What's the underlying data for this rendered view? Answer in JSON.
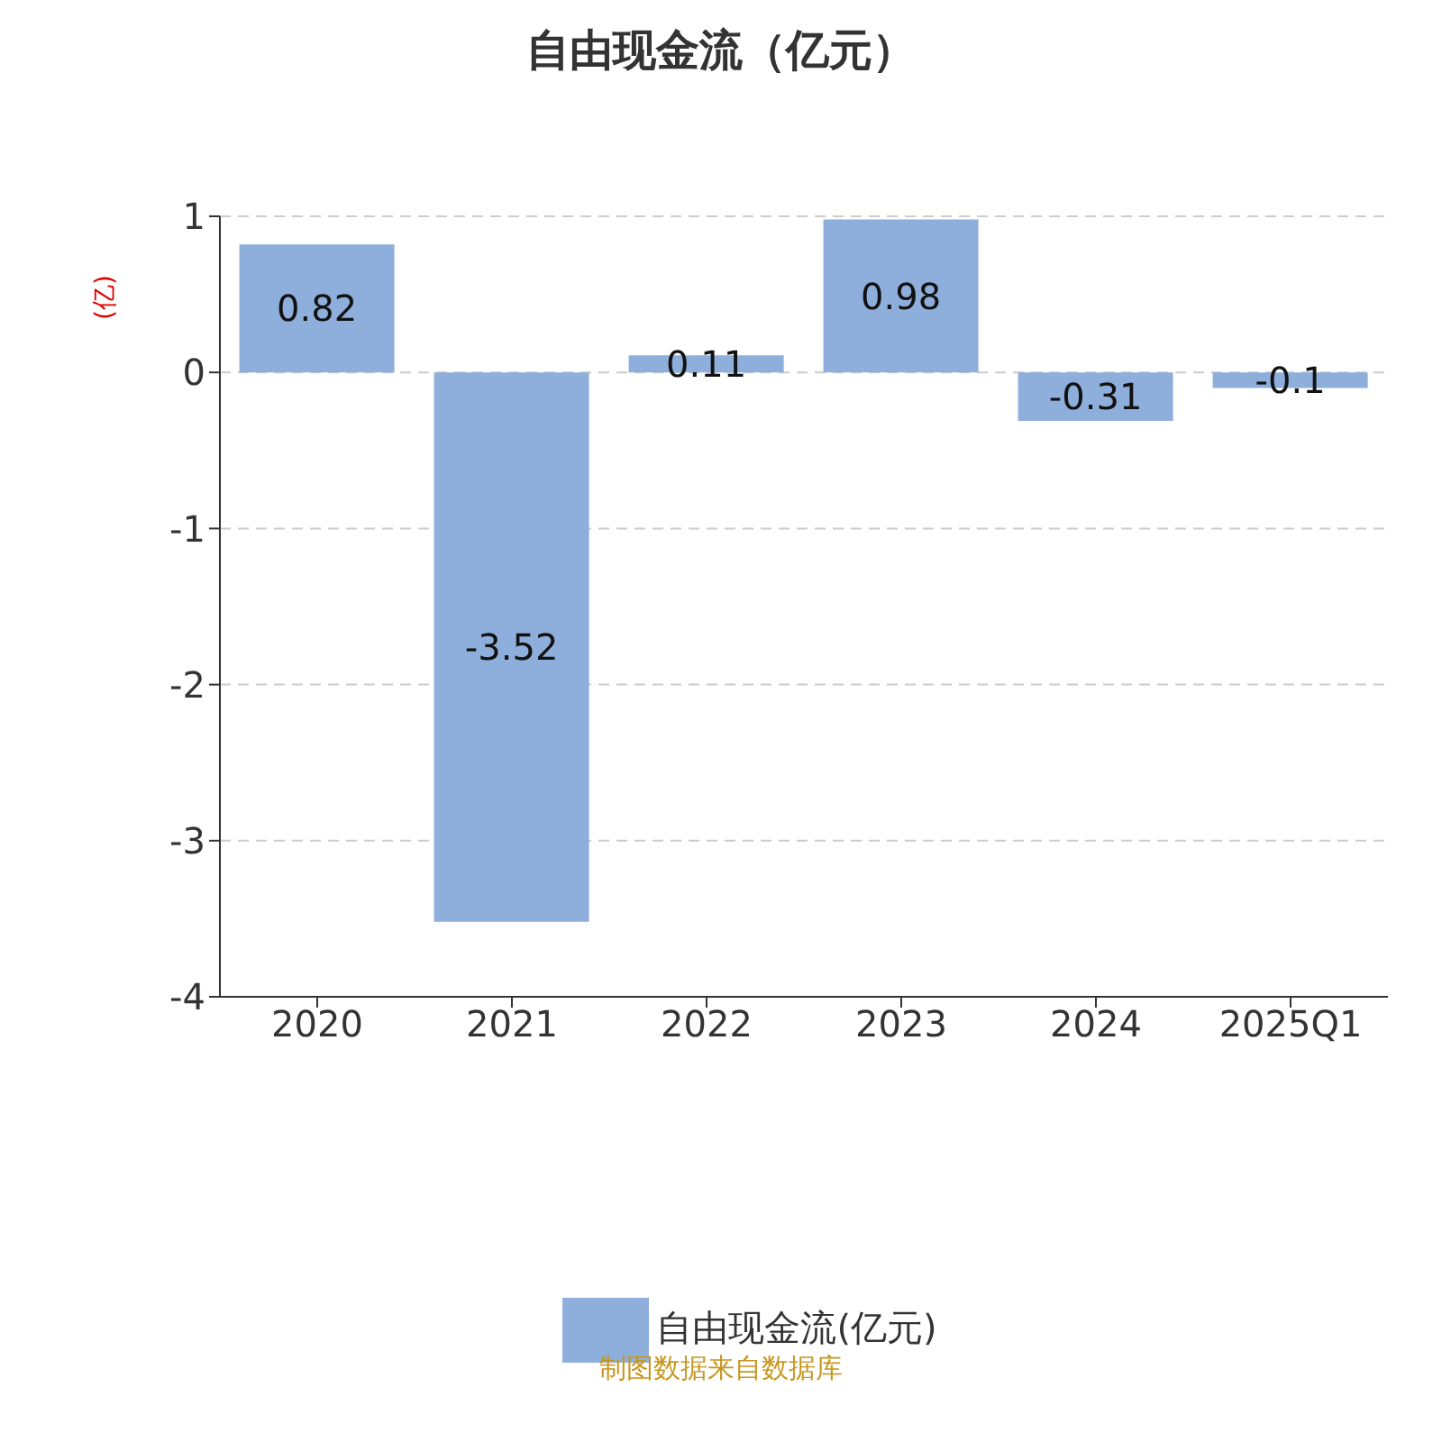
{
  "chart_data": {
    "type": "bar",
    "title": "自由现金流（亿元）",
    "ylabel": "(亿)",
    "categories": [
      "2020",
      "2021",
      "2022",
      "2023",
      "2024",
      "2025Q1"
    ],
    "series": [
      {
        "name": "自由现金流(亿元)",
        "color": "#8eaedb",
        "values": [
          0.82,
          -3.52,
          0.11,
          0.98,
          -0.31,
          -0.1
        ]
      }
    ],
    "ylim": [
      -4,
      1
    ],
    "yticks": [
      -4,
      -3,
      -2,
      -1,
      0,
      1
    ],
    "grid": "y",
    "legend": "bottom",
    "data_labels": true,
    "annotations": [
      "制图数据来自数据库"
    ]
  }
}
